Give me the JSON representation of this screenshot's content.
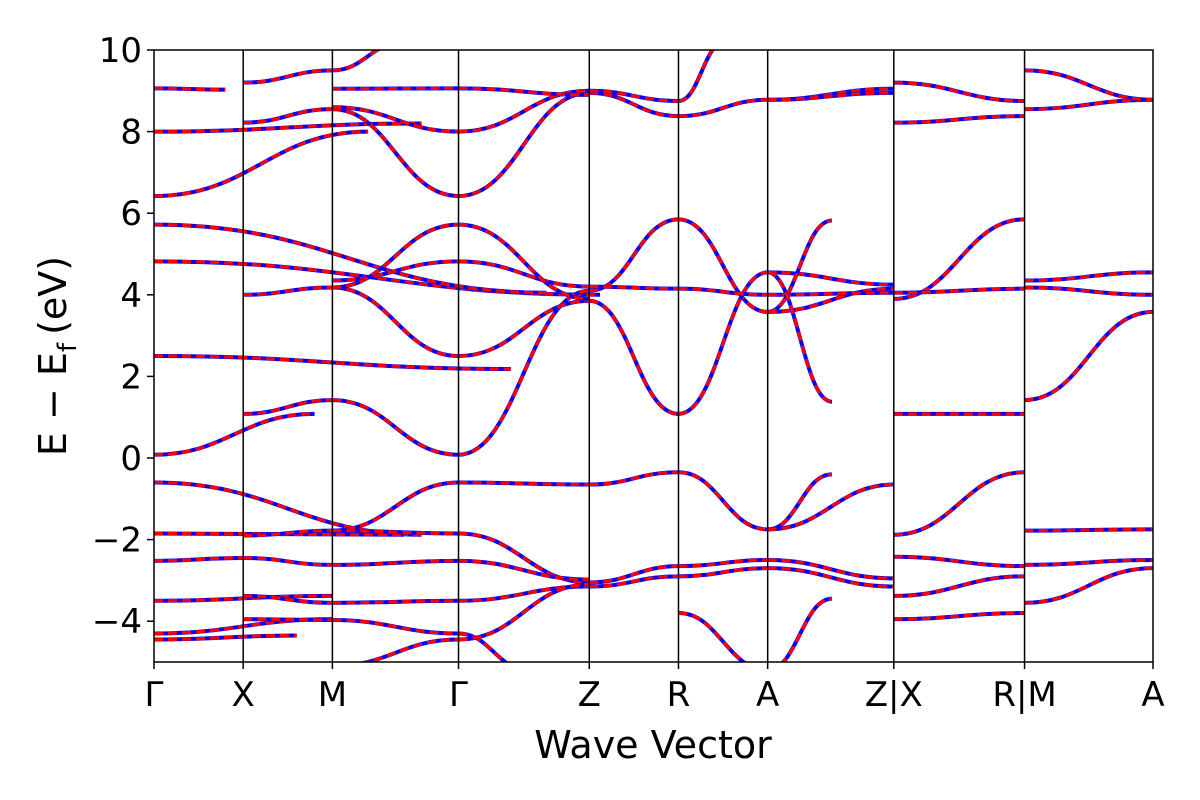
{
  "chart_data": {
    "type": "line",
    "xlabel": "Wave Vector",
    "ylabel": "E − E",
    "ylabel_subscript": "f",
    "ylabel_unit": "(eV)",
    "ylim": [
      -5,
      10
    ],
    "yticks": [
      -4,
      -2,
      0,
      2,
      4,
      6,
      8,
      10
    ],
    "xticks": [
      {
        "label": "Γ",
        "x": 0.0
      },
      {
        "label": "X",
        "x": 0.5
      },
      {
        "label": "M",
        "x": 1.0
      },
      {
        "label": "Γ",
        "x": 1.707
      },
      {
        "label": "Z",
        "x": 2.44
      },
      {
        "label": "R",
        "x": 2.94
      },
      {
        "label": "A",
        "x": 3.44
      },
      {
        "label": "Z|X",
        "x": 4.147
      },
      {
        "label": "R|M",
        "x": 4.88
      },
      {
        "label": "A",
        "x": 5.6
      }
    ],
    "xlim": [
      0,
      5.6
    ],
    "grid": false,
    "colors": {
      "dft": "#0000ff",
      "wannier": "#ff0000",
      "axis": "#000000"
    },
    "band_points": [
      [
        0.0,
        2.5,
        2.0,
        2.18
      ],
      [
        0.0,
        0.08,
        0.9,
        1.08
      ],
      [
        0.0,
        -0.6,
        1.5,
        -1.88
      ],
      [
        0.0,
        4.82,
        2.5,
        4.0
      ],
      [
        0.0,
        5.72,
        2.2,
        4.05
      ],
      [
        0.0,
        6.42,
        1.2,
        8.0
      ],
      [
        0.0,
        8.0,
        1.5,
        8.2
      ],
      [
        0.0,
        9.06,
        0.4,
        9.03
      ],
      [
        0.0,
        -1.85,
        1.4,
        -1.88
      ],
      [
        0.0,
        -2.52,
        0.5,
        -2.45
      ],
      [
        0.0,
        -3.5,
        1.0,
        -3.38
      ],
      [
        0.0,
        -4.3,
        1.0,
        -3.95
      ],
      [
        0.0,
        -4.45,
        0.8,
        -4.35
      ],
      [
        0.5,
        1.08,
        1.0,
        1.42
      ],
      [
        0.5,
        4.0,
        1.0,
        4.18
      ],
      [
        0.5,
        8.22,
        1.0,
        8.55
      ],
      [
        0.5,
        9.2,
        1.0,
        9.5
      ],
      [
        0.5,
        -1.9,
        1.0,
        -1.78
      ],
      [
        0.5,
        -2.45,
        1.0,
        -2.62
      ],
      [
        0.5,
        -3.38,
        1.0,
        -3.55
      ],
      [
        0.5,
        -3.95,
        1.0,
        -3.97
      ],
      [
        1.0,
        1.42,
        1.707,
        0.08
      ],
      [
        1.0,
        4.18,
        1.707,
        2.5
      ],
      [
        1.0,
        4.35,
        1.707,
        4.82
      ],
      [
        1.0,
        4.18,
        1.707,
        5.72
      ],
      [
        1.0,
        8.55,
        1.707,
        6.42
      ],
      [
        1.0,
        8.6,
        1.707,
        8.0
      ],
      [
        1.0,
        9.5,
        1.4,
        10.2
      ],
      [
        1.0,
        9.05,
        1.707,
        9.06
      ],
      [
        1.0,
        -1.78,
        1.707,
        -0.6
      ],
      [
        1.0,
        -1.78,
        1.707,
        -1.85
      ],
      [
        1.0,
        -2.62,
        1.707,
        -2.52
      ],
      [
        1.0,
        -3.55,
        1.707,
        -3.5
      ],
      [
        1.0,
        -3.97,
        1.707,
        -4.3
      ],
      [
        1.0,
        -5.1,
        1.707,
        -4.45
      ],
      [
        1.707,
        0.08,
        2.44,
        4.1
      ],
      [
        1.707,
        2.5,
        2.44,
        3.85
      ],
      [
        1.707,
        4.82,
        2.44,
        4.2
      ],
      [
        1.707,
        5.72,
        2.44,
        3.9
      ],
      [
        1.707,
        6.42,
        2.44,
        8.95
      ],
      [
        1.707,
        8.0,
        2.44,
        9.0
      ],
      [
        1.707,
        9.06,
        2.44,
        8.9
      ],
      [
        1.707,
        -0.6,
        2.44,
        -0.65
      ],
      [
        1.707,
        -1.85,
        2.44,
        -3.05
      ],
      [
        1.707,
        -2.52,
        2.44,
        -2.98
      ],
      [
        1.707,
        -3.5,
        2.44,
        -3.15
      ],
      [
        1.707,
        -4.3,
        2.1,
        -5.2
      ],
      [
        1.707,
        -4.45,
        2.44,
        -3.1
      ],
      [
        2.44,
        4.1,
        2.94,
        5.85
      ],
      [
        2.44,
        3.85,
        2.94,
        1.08
      ],
      [
        2.44,
        4.2,
        2.94,
        4.15
      ],
      [
        2.44,
        8.95,
        2.94,
        8.38
      ],
      [
        2.44,
        9.0,
        2.94,
        8.75
      ],
      [
        2.44,
        -0.65,
        2.94,
        -0.35
      ],
      [
        2.44,
        -3.05,
        2.94,
        -2.65
      ],
      [
        2.44,
        -3.15,
        2.94,
        -2.9
      ],
      [
        2.94,
        5.85,
        3.44,
        3.58
      ],
      [
        2.94,
        1.08,
        3.44,
        4.55
      ],
      [
        2.94,
        4.15,
        3.44,
        4.0
      ],
      [
        2.94,
        8.38,
        3.44,
        8.78
      ],
      [
        2.94,
        8.75,
        3.2,
        10.2
      ],
      [
        2.94,
        -0.35,
        3.44,
        -1.75
      ],
      [
        2.94,
        -2.65,
        3.44,
        -2.5
      ],
      [
        2.94,
        -2.9,
        3.44,
        -2.7
      ],
      [
        2.94,
        -3.8,
        3.44,
        -5.2
      ],
      [
        3.44,
        3.58,
        4.147,
        4.15
      ],
      [
        3.44,
        4.55,
        4.147,
        4.25
      ],
      [
        3.44,
        4.0,
        4.147,
        4.05
      ],
      [
        3.44,
        3.58,
        3.8,
        5.82
      ],
      [
        3.44,
        4.55,
        3.8,
        1.38
      ],
      [
        3.44,
        8.78,
        4.147,
        9.05
      ],
      [
        3.44,
        8.78,
        4.147,
        8.95
      ],
      [
        3.44,
        -1.75,
        3.8,
        -0.4
      ],
      [
        3.44,
        -1.75,
        4.147,
        -0.65
      ],
      [
        3.44,
        -2.5,
        4.147,
        -2.95
      ],
      [
        3.44,
        -2.7,
        4.147,
        -3.15
      ],
      [
        3.44,
        -5.2,
        3.8,
        -3.45
      ],
      [
        4.147,
        1.08,
        4.88,
        1.08
      ],
      [
        4.147,
        3.9,
        4.88,
        5.85
      ],
      [
        4.147,
        4.05,
        4.88,
        4.15
      ],
      [
        4.147,
        8.22,
        4.88,
        8.38
      ],
      [
        4.147,
        9.2,
        4.88,
        8.75
      ],
      [
        4.147,
        -1.88,
        4.88,
        -0.35
      ],
      [
        4.147,
        -2.42,
        4.88,
        -2.65
      ],
      [
        4.147,
        -3.38,
        4.88,
        -2.9
      ],
      [
        4.147,
        -3.95,
        4.88,
        -3.8
      ],
      [
        4.88,
        1.42,
        5.6,
        3.58
      ],
      [
        4.88,
        4.35,
        5.6,
        4.55
      ],
      [
        4.88,
        4.18,
        5.6,
        4.0
      ],
      [
        4.88,
        8.55,
        5.6,
        8.78
      ],
      [
        4.88,
        9.5,
        5.6,
        8.78
      ],
      [
        4.88,
        -1.78,
        5.6,
        -1.75
      ],
      [
        4.88,
        -2.62,
        5.6,
        -2.5
      ],
      [
        4.88,
        -3.55,
        5.6,
        -2.7
      ]
    ]
  }
}
